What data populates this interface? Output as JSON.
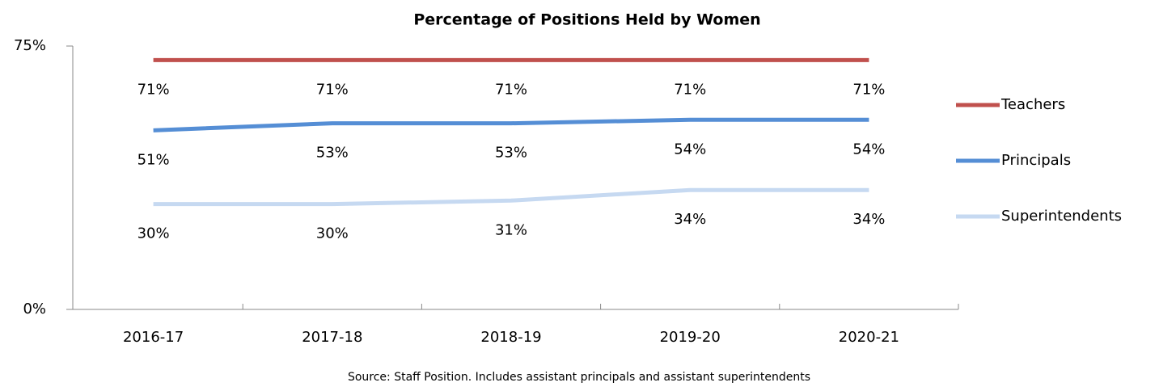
{
  "chart_data": {
    "type": "line",
    "title": "Percentage of Positions Held by Women",
    "note": "Source: Staff Position. Includes assistant principals and assistant superintendents",
    "categories": [
      "2016-17",
      "2017-18",
      "2018-19",
      "2019-20",
      "2020-21"
    ],
    "series": [
      {
        "name": "Teachers",
        "color": "#c0504d",
        "values": [
          71,
          71,
          71,
          71,
          71
        ],
        "value_labels": [
          "71%",
          "71%",
          "71%",
          "71%",
          "71%"
        ]
      },
      {
        "name": "Principals",
        "color": "#558ed5",
        "values": [
          51,
          53,
          53,
          54,
          54
        ],
        "value_labels": [
          "51%",
          "53%",
          "53%",
          "54%",
          "54%"
        ]
      },
      {
        "name": "Superintendents",
        "color": "#c6d9f1",
        "values": [
          30,
          30,
          31,
          34,
          34
        ],
        "value_labels": [
          "30%",
          "30%",
          "31%",
          "34%",
          "34%"
        ]
      }
    ],
    "ylim": [
      0,
      75
    ],
    "yticks": [
      {
        "value": 0,
        "label": "0%"
      },
      {
        "value": 75,
        "label": "75%"
      }
    ],
    "legend": "right"
  }
}
